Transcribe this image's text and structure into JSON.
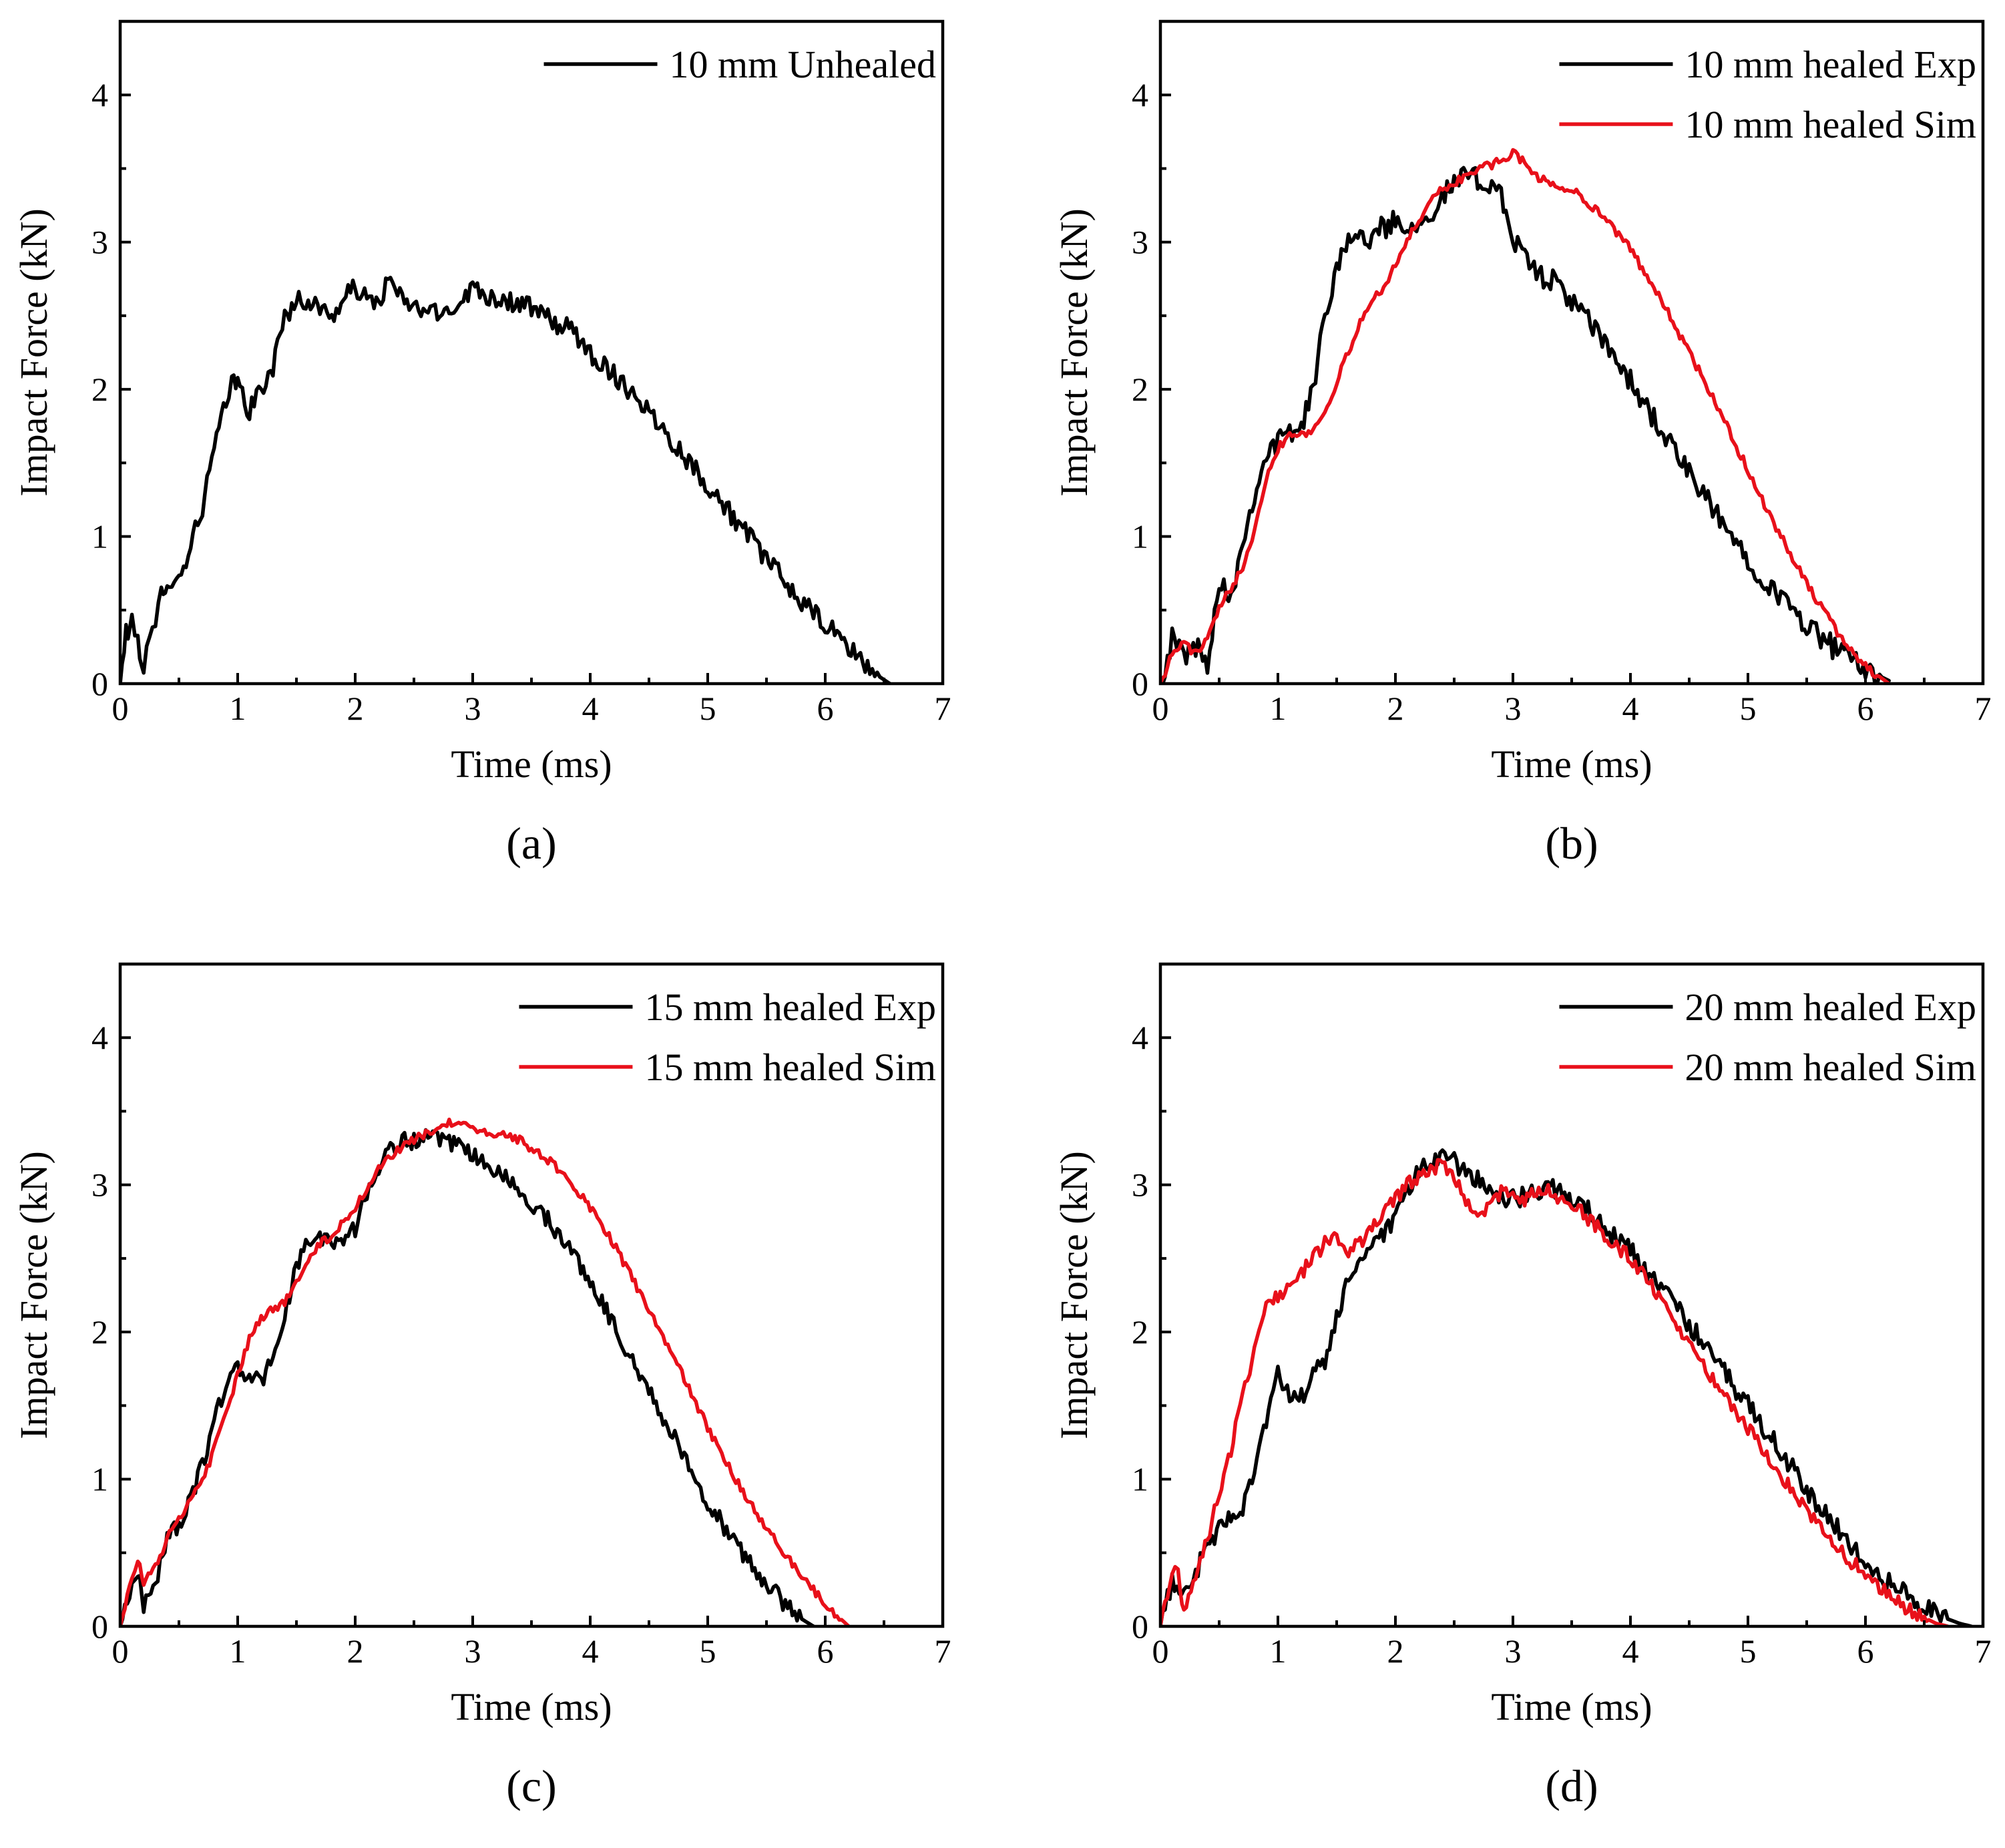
{
  "colors": {
    "exp": "#000000",
    "sim": "#e8101a"
  },
  "chart_data": [
    {
      "type": "line",
      "panel_label": "(a)",
      "xlabel": "Time (ms)",
      "ylabel": "Impact Force (kN)",
      "xlim": [
        0,
        7
      ],
      "ylim": [
        0,
        4.5
      ],
      "xticks": [
        "0",
        "1",
        "2",
        "3",
        "4",
        "5",
        "6",
        "7"
      ],
      "yticks": [
        "0",
        "1",
        "2",
        "3",
        "4"
      ],
      "legend_position": "top-right",
      "series": [
        {
          "name": "10 mm Unhealed",
          "color": "#000000",
          "noise": 0.07,
          "x": [
            0,
            0.05,
            0.1,
            0.15,
            0.2,
            0.25,
            0.3,
            0.35,
            0.4,
            0.5,
            0.6,
            0.7,
            0.8,
            0.9,
            0.95,
            1.0,
            1.1,
            1.2,
            1.3,
            1.4,
            1.5,
            1.6,
            1.7,
            1.8,
            1.9,
            2.0,
            2.1,
            2.2,
            2.3,
            2.4,
            2.5,
            2.6,
            2.7,
            2.8,
            2.9,
            3.0,
            3.1,
            3.2,
            3.3,
            3.4,
            3.5,
            3.6,
            3.7,
            3.8,
            3.9,
            4.0,
            4.2,
            4.4,
            4.6,
            4.8,
            5.0,
            5.2,
            5.4,
            5.6,
            5.8,
            6.0,
            6.2,
            6.4,
            6.55
          ],
          "y": [
            0,
            0.35,
            0.4,
            0.3,
            0.1,
            0.3,
            0.35,
            0.65,
            0.7,
            0.7,
            0.95,
            1.2,
            1.6,
            1.9,
            2.05,
            2.05,
            1.85,
            2.0,
            2.15,
            2.5,
            2.6,
            2.6,
            2.55,
            2.5,
            2.6,
            2.7,
            2.6,
            2.6,
            2.75,
            2.6,
            2.55,
            2.55,
            2.5,
            2.55,
            2.6,
            2.7,
            2.65,
            2.62,
            2.6,
            2.58,
            2.55,
            2.5,
            2.45,
            2.42,
            2.35,
            2.25,
            2.1,
            1.95,
            1.75,
            1.55,
            1.35,
            1.15,
            0.95,
            0.75,
            0.55,
            0.4,
            0.25,
            0.08,
            0
          ]
        }
      ]
    },
    {
      "type": "line",
      "panel_label": "(b)",
      "xlabel": "Time (ms)",
      "ylabel": "Impact Force (kN)",
      "xlim": [
        0,
        7
      ],
      "ylim": [
        0,
        4.5
      ],
      "xticks": [
        "0",
        "1",
        "2",
        "3",
        "4",
        "5",
        "6",
        "7"
      ],
      "yticks": [
        "0",
        "1",
        "2",
        "3",
        "4"
      ],
      "legend_position": "top-right",
      "series": [
        {
          "name": "10 mm healed Exp",
          "color": "#000000",
          "noise": 0.08,
          "x": [
            0,
            0.1,
            0.2,
            0.3,
            0.4,
            0.5,
            0.6,
            0.7,
            0.8,
            0.9,
            1.0,
            1.1,
            1.2,
            1.3,
            1.4,
            1.5,
            1.6,
            1.7,
            1.8,
            1.9,
            2.0,
            2.1,
            2.2,
            2.3,
            2.4,
            2.5,
            2.6,
            2.7,
            2.8,
            2.9,
            3.0,
            3.1,
            3.2,
            3.4,
            3.6,
            3.8,
            4.0,
            4.2,
            4.4,
            4.6,
            4.8,
            5.0,
            5.2,
            5.4,
            5.6,
            5.8,
            6.0,
            6.2
          ],
          "y": [
            0,
            0.3,
            0.2,
            0.25,
            0.15,
            0.7,
            0.6,
            0.95,
            1.3,
            1.55,
            1.65,
            1.7,
            1.75,
            2.0,
            2.5,
            2.85,
            3.05,
            3.0,
            3.05,
            3.1,
            3.15,
            3.1,
            3.15,
            3.2,
            3.3,
            3.4,
            3.45,
            3.42,
            3.4,
            3.35,
            3.0,
            2.9,
            2.8,
            2.7,
            2.5,
            2.3,
            2.05,
            1.8,
            1.55,
            1.3,
            1.07,
            0.85,
            0.65,
            0.48,
            0.33,
            0.2,
            0.1,
            0.02
          ]
        },
        {
          "name": "10 mm healed Sim",
          "color": "#e8101a",
          "noise": 0.03,
          "x": [
            0,
            0.1,
            0.2,
            0.3,
            0.4,
            0.5,
            0.6,
            0.7,
            0.8,
            0.9,
            1.0,
            1.1,
            1.2,
            1.3,
            1.4,
            1.5,
            1.6,
            1.7,
            1.8,
            1.9,
            2.0,
            2.1,
            2.2,
            2.3,
            2.4,
            2.5,
            2.6,
            2.7,
            2.8,
            2.9,
            3.0,
            3.1,
            3.2,
            3.3,
            3.4,
            3.5,
            3.6,
            3.8,
            4.0,
            4.2,
            4.4,
            4.6,
            4.8,
            5.0,
            5.2,
            5.4,
            5.6,
            5.8,
            6.0,
            6.2
          ],
          "y": [
            0,
            0.2,
            0.28,
            0.2,
            0.3,
            0.5,
            0.65,
            0.8,
            1.05,
            1.4,
            1.6,
            1.7,
            1.7,
            1.72,
            1.85,
            2.05,
            2.25,
            2.45,
            2.6,
            2.7,
            2.85,
            3.0,
            3.15,
            3.3,
            3.35,
            3.4,
            3.45,
            3.5,
            3.52,
            3.55,
            3.6,
            3.55,
            3.45,
            3.4,
            3.38,
            3.35,
            3.3,
            3.15,
            2.95,
            2.7,
            2.4,
            2.1,
            1.78,
            1.45,
            1.12,
            0.82,
            0.55,
            0.3,
            0.12,
            0
          ]
        }
      ]
    },
    {
      "type": "line",
      "panel_label": "(c)",
      "xlabel": "Time (ms)",
      "ylabel": "Impact Force (kN)",
      "xlim": [
        0,
        7
      ],
      "ylim": [
        0,
        4.5
      ],
      "xticks": [
        "0",
        "1",
        "2",
        "3",
        "4",
        "5",
        "6",
        "7"
      ],
      "yticks": [
        "0",
        "1",
        "2",
        "3",
        "4"
      ],
      "legend_position": "top-right",
      "series": [
        {
          "name": "15 mm healed Exp",
          "color": "#000000",
          "noise": 0.06,
          "x": [
            0,
            0.1,
            0.15,
            0.2,
            0.3,
            0.4,
            0.5,
            0.6,
            0.7,
            0.8,
            0.9,
            1.0,
            1.1,
            1.2,
            1.3,
            1.4,
            1.5,
            1.6,
            1.7,
            1.8,
            1.9,
            2.0,
            2.1,
            2.2,
            2.3,
            2.4,
            2.5,
            2.6,
            2.7,
            2.8,
            2.9,
            3.0,
            3.2,
            3.4,
            3.6,
            3.8,
            4.0,
            4.2,
            4.4,
            4.6,
            4.8,
            5.0,
            5.2,
            5.4,
            5.6,
            5.8,
            5.9
          ],
          "y": [
            0,
            0.3,
            0.35,
            0.15,
            0.3,
            0.6,
            0.7,
            0.85,
            1.1,
            1.4,
            1.65,
            1.75,
            1.7,
            1.65,
            1.85,
            2.1,
            2.45,
            2.6,
            2.65,
            2.6,
            2.65,
            2.7,
            2.95,
            3.1,
            3.25,
            3.3,
            3.3,
            3.32,
            3.3,
            3.28,
            3.25,
            3.2,
            3.1,
            2.95,
            2.8,
            2.6,
            2.35,
            2.05,
            1.75,
            1.45,
            1.15,
            0.85,
            0.6,
            0.38,
            0.2,
            0.05,
            0
          ]
        },
        {
          "name": "15 mm healed Sim",
          "color": "#e8101a",
          "noise": 0.03,
          "x": [
            0,
            0.1,
            0.15,
            0.2,
            0.3,
            0.4,
            0.5,
            0.6,
            0.7,
            0.8,
            0.9,
            1.0,
            1.1,
            1.2,
            1.3,
            1.4,
            1.5,
            1.6,
            1.7,
            1.8,
            1.9,
            2.0,
            2.1,
            2.2,
            2.3,
            2.4,
            2.5,
            2.6,
            2.7,
            2.8,
            2.9,
            3.0,
            3.2,
            3.4,
            3.6,
            3.8,
            4.0,
            4.2,
            4.4,
            4.6,
            4.8,
            5.0,
            5.2,
            5.4,
            5.6,
            5.8,
            6.0,
            6.2
          ],
          "y": [
            0,
            0.35,
            0.45,
            0.3,
            0.4,
            0.6,
            0.72,
            0.85,
            1.0,
            1.2,
            1.45,
            1.7,
            1.95,
            2.1,
            2.15,
            2.2,
            2.35,
            2.5,
            2.6,
            2.65,
            2.75,
            2.85,
            2.98,
            3.1,
            3.2,
            3.25,
            3.3,
            3.35,
            3.38,
            3.42,
            3.4,
            3.38,
            3.35,
            3.3,
            3.2,
            3.05,
            2.85,
            2.6,
            2.3,
            2.0,
            1.68,
            1.35,
            1.05,
            0.78,
            0.55,
            0.35,
            0.15,
            0
          ]
        }
      ]
    },
    {
      "type": "line",
      "panel_label": "(d)",
      "xlabel": "Time (ms)",
      "ylabel": "Impact Force (kN)",
      "xlim": [
        0,
        7
      ],
      "ylim": [
        0,
        4.5
      ],
      "xticks": [
        "0",
        "1",
        "2",
        "3",
        "4",
        "5",
        "6",
        "7"
      ],
      "yticks": [
        "0",
        "1",
        "2",
        "3",
        "4"
      ],
      "legend_position": "top-right",
      "series": [
        {
          "name": "20 mm healed Exp",
          "color": "#000000",
          "noise": 0.07,
          "x": [
            0,
            0.1,
            0.2,
            0.3,
            0.4,
            0.5,
            0.6,
            0.7,
            0.8,
            0.9,
            1.0,
            1.1,
            1.2,
            1.3,
            1.4,
            1.5,
            1.6,
            1.7,
            1.8,
            1.9,
            2.0,
            2.1,
            2.2,
            2.3,
            2.4,
            2.5,
            2.6,
            2.7,
            2.8,
            2.9,
            3.0,
            3.1,
            3.2,
            3.3,
            3.4,
            3.5,
            3.6,
            3.8,
            4.0,
            4.2,
            4.4,
            4.6,
            4.8,
            5.0,
            5.2,
            5.4,
            5.6,
            5.8,
            6.0,
            6.2,
            6.4,
            6.6,
            6.8,
            6.9
          ],
          "y": [
            0,
            0.3,
            0.25,
            0.35,
            0.55,
            0.65,
            0.75,
            0.8,
            1.1,
            1.4,
            1.7,
            1.55,
            1.55,
            1.7,
            1.8,
            2.1,
            2.35,
            2.5,
            2.6,
            2.65,
            2.75,
            2.95,
            3.1,
            3.15,
            3.2,
            3.15,
            3.1,
            3.05,
            2.95,
            2.9,
            2.9,
            2.92,
            2.95,
            3.0,
            2.95,
            2.9,
            2.85,
            2.7,
            2.55,
            2.35,
            2.15,
            1.95,
            1.72,
            1.5,
            1.28,
            1.05,
            0.82,
            0.62,
            0.45,
            0.3,
            0.18,
            0.08,
            0.02,
            0
          ]
        },
        {
          "name": "20 mm healed Sim",
          "color": "#e8101a",
          "noise": 0.05,
          "x": [
            0,
            0.1,
            0.15,
            0.2,
            0.3,
            0.4,
            0.5,
            0.6,
            0.7,
            0.8,
            0.9,
            1.0,
            1.1,
            1.2,
            1.3,
            1.4,
            1.5,
            1.6,
            1.7,
            1.8,
            1.9,
            2.0,
            2.1,
            2.2,
            2.3,
            2.4,
            2.5,
            2.6,
            2.7,
            2.8,
            2.9,
            3.0,
            3.1,
            3.2,
            3.3,
            3.4,
            3.5,
            3.6,
            3.8,
            4.0,
            4.2,
            4.4,
            4.6,
            4.8,
            5.0,
            5.2,
            5.4,
            5.6,
            5.8,
            6.0,
            6.2,
            6.4,
            6.6,
            6.7
          ],
          "y": [
            0,
            0.35,
            0.4,
            0.1,
            0.35,
            0.6,
            0.9,
            1.2,
            1.55,
            1.9,
            2.2,
            2.25,
            2.3,
            2.4,
            2.5,
            2.6,
            2.65,
            2.55,
            2.6,
            2.7,
            2.8,
            2.9,
            3.0,
            3.05,
            3.1,
            3.15,
            3.05,
            2.9,
            2.8,
            2.85,
            2.95,
            2.95,
            2.9,
            2.95,
            2.98,
            2.9,
            2.85,
            2.8,
            2.65,
            2.5,
            2.3,
            2.05,
            1.8,
            1.58,
            1.35,
            1.12,
            0.9,
            0.68,
            0.5,
            0.35,
            0.22,
            0.1,
            0.02,
            0
          ]
        }
      ]
    }
  ]
}
